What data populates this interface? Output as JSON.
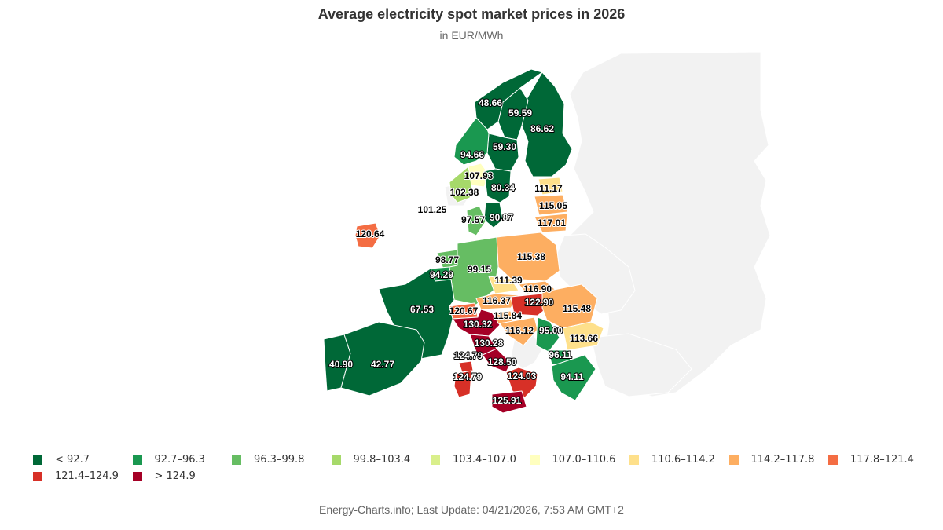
{
  "title": "Average electricity spot market prices in 2026",
  "subtitle": "in EUR/MWh",
  "footer": "Energy-Charts.info; Last Update: 04/21/2026, 7:53 AM GMT+2",
  "colors": {
    "background_land": "#f2f2f2",
    "border": "#ffffff"
  },
  "legend": [
    {
      "label": "< 92.7",
      "color": "#006837"
    },
    {
      "label": "92.7–96.3",
      "color": "#1a9850"
    },
    {
      "label": "96.3–99.8",
      "color": "#66bd63"
    },
    {
      "label": "99.8–103.4",
      "color": "#a6d96a"
    },
    {
      "label": "103.4–107.0",
      "color": "#d9ef8b"
    },
    {
      "label": "107.0–110.6",
      "color": "#ffffbf"
    },
    {
      "label": "110.6–114.2",
      "color": "#fee08b"
    },
    {
      "label": "114.2–117.8",
      "color": "#fdae61"
    },
    {
      "label": "117.8–121.4",
      "color": "#f46d43"
    },
    {
      "label": "121.4–124.9",
      "color": "#d73027"
    },
    {
      "label": "> 124.9",
      "color": "#a50026"
    }
  ],
  "regions": [
    {
      "zone": "NO4",
      "value": "48.66",
      "color": "#006837"
    },
    {
      "zone": "SE1",
      "value": "59.59",
      "color": "#006837"
    },
    {
      "zone": "FI",
      "value": "86.62",
      "color": "#006837"
    },
    {
      "zone": "SE2",
      "value": "59.30",
      "color": "#006837"
    },
    {
      "zone": "NO3",
      "value": "94.66",
      "color": "#1a9850"
    },
    {
      "zone": "NO1",
      "value": "107.93",
      "color": "#ffffbf"
    },
    {
      "zone": "NO2",
      "value": "102.38",
      "color": "#a6d96a"
    },
    {
      "zone": "SE3",
      "value": "80.34",
      "color": "#006837"
    },
    {
      "zone": "EE",
      "value": "111.17",
      "color": "#fee08b"
    },
    {
      "zone": "GB",
      "value": "101.25",
      "color": null
    },
    {
      "zone": "LV",
      "value": "115.05",
      "color": "#fdae61"
    },
    {
      "zone": "SE4",
      "value": "90.87",
      "color": "#006837"
    },
    {
      "zone": "DK",
      "value": "97.57",
      "color": "#66bd63"
    },
    {
      "zone": "LT",
      "value": "117.01",
      "color": "#fdae61"
    },
    {
      "zone": "IE",
      "value": "120.64",
      "color": "#f46d43"
    },
    {
      "zone": "PL",
      "value": "115.38",
      "color": "#fdae61"
    },
    {
      "zone": "NL",
      "value": "98.77",
      "color": "#66bd63"
    },
    {
      "zone": "DE",
      "value": "99.15",
      "color": "#66bd63"
    },
    {
      "zone": "BE",
      "value": "94.29",
      "color": "#1a9850"
    },
    {
      "zone": "CZ",
      "value": "111.39",
      "color": "#fee08b"
    },
    {
      "zone": "SK",
      "value": "116.90",
      "color": "#fdae61"
    },
    {
      "zone": "AT",
      "value": "116.37",
      "color": "#fdae61"
    },
    {
      "zone": "HU",
      "value": "122.90",
      "color": "#d73027"
    },
    {
      "zone": "FR",
      "value": "67.53",
      "color": "#006837"
    },
    {
      "zone": "RO",
      "value": "115.48",
      "color": "#fdae61"
    },
    {
      "zone": "CH",
      "value": "120.67",
      "color": "#f46d43"
    },
    {
      "zone": "IT-N",
      "value": "130.32",
      "color": "#a50026"
    },
    {
      "zone": "SI",
      "value": "115.84",
      "color": "#fdae61"
    },
    {
      "zone": "HR",
      "value": "116.12",
      "color": "#fdae61"
    },
    {
      "zone": "RS",
      "value": "95.00",
      "color": "#1a9850"
    },
    {
      "zone": "BG",
      "value": "113.66",
      "color": "#fee08b"
    },
    {
      "zone": "IT-CN",
      "value": "130.28",
      "color": "#a50026"
    },
    {
      "zone": "PT",
      "value": "40.90",
      "color": "#006837"
    },
    {
      "zone": "ES",
      "value": "42.77",
      "color": "#006837"
    },
    {
      "zone": "IT-SARD",
      "value": "124.79",
      "color": "#d73027"
    },
    {
      "zone": "IT-CS",
      "value": "128.50",
      "color": "#a50026"
    },
    {
      "zone": "MK",
      "value": "96.11",
      "color": "#1a9850"
    },
    {
      "zone": "IT-SARD2",
      "value": "124.79",
      "color": "#d73027"
    },
    {
      "zone": "IT-S",
      "value": "124.03",
      "color": "#d73027"
    },
    {
      "zone": "GR",
      "value": "94.11",
      "color": "#1a9850"
    },
    {
      "zone": "IT-SICI",
      "value": "125.91",
      "color": "#a50026"
    }
  ]
}
